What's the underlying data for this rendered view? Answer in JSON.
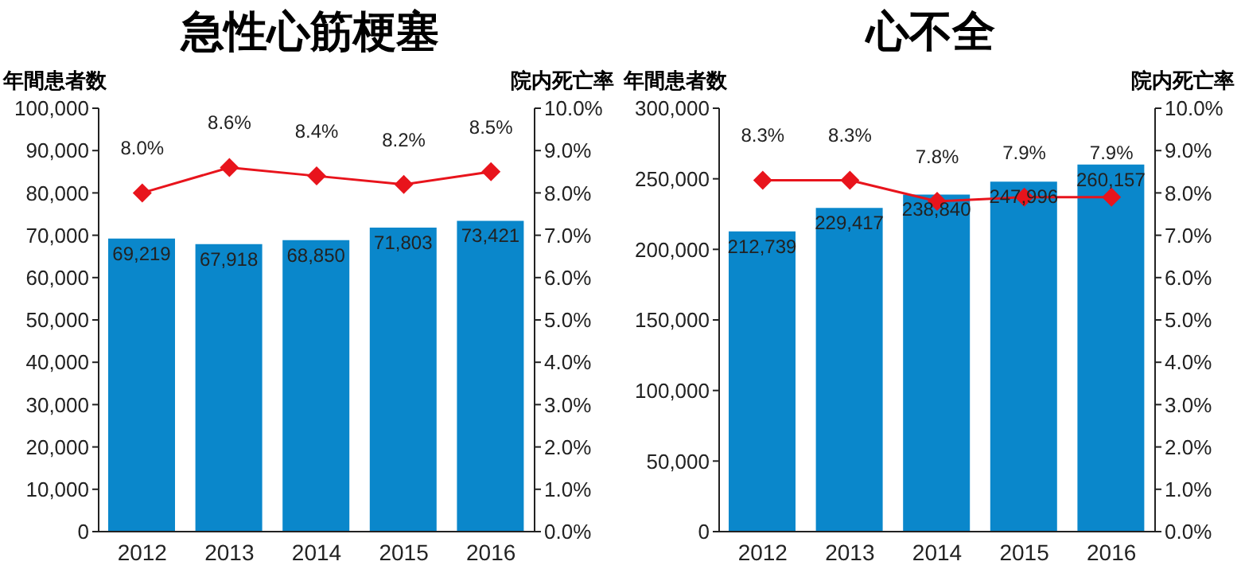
{
  "chart_data": [
    {
      "type": "bar",
      "title": "急性心筋梗塞",
      "ylabel": "年間患者数",
      "y2label": "院内死亡率",
      "categories": [
        "2012",
        "2013",
        "2014",
        "2015",
        "2016"
      ],
      "series": [
        {
          "color": "#0a87cb",
          "values": [
            69219,
            67918,
            68850,
            71803,
            73421
          ],
          "value_labels": [
            "69,219",
            "67,918",
            "68,850",
            "71,803",
            "73,421"
          ]
        },
        {
          "type": "line",
          "axis": "y2",
          "color": "#e8141c",
          "marker": "diamond",
          "values": [
            8.0,
            8.6,
            8.4,
            8.2,
            8.5
          ],
          "value_labels": [
            "8.0%",
            "8.6%",
            "8.4%",
            "8.2%",
            "8.5%"
          ]
        }
      ],
      "ylim": [
        0,
        100000
      ],
      "yticks": [
        {
          "value": 0,
          "label": "0"
        },
        {
          "value": 10000,
          "label": "10,000"
        },
        {
          "value": 20000,
          "label": "20,000"
        },
        {
          "value": 30000,
          "label": "30,000"
        },
        {
          "value": 40000,
          "label": "40,000"
        },
        {
          "value": 50000,
          "label": "50,000"
        },
        {
          "value": 60000,
          "label": "60,000"
        },
        {
          "value": 70000,
          "label": "70,000"
        },
        {
          "value": 80000,
          "label": "80,000"
        },
        {
          "value": 90000,
          "label": "90,000"
        },
        {
          "value": 100000,
          "label": "100,000"
        }
      ],
      "y2lim": [
        0,
        10
      ],
      "y2ticks": [
        {
          "value": 0,
          "label": "0.0%"
        },
        {
          "value": 1,
          "label": "1.0%"
        },
        {
          "value": 2,
          "label": "2.0%"
        },
        {
          "value": 3,
          "label": "3.0%"
        },
        {
          "value": 4,
          "label": "4.0%"
        },
        {
          "value": 5,
          "label": "5.0%"
        },
        {
          "value": 6,
          "label": "6.0%"
        },
        {
          "value": 7,
          "label": "7.0%"
        },
        {
          "value": 8,
          "label": "8.0%"
        },
        {
          "value": 9,
          "label": "9.0%"
        },
        {
          "value": 10,
          "label": "10.0%"
        }
      ],
      "grid": false,
      "legend": false
    },
    {
      "type": "bar",
      "title": "心不全",
      "ylabel": "年間患者数",
      "y2label": "院内死亡率",
      "categories": [
        "2012",
        "2013",
        "2014",
        "2015",
        "2016"
      ],
      "series": [
        {
          "color": "#0a87cb",
          "values": [
            212739,
            229417,
            238840,
            247996,
            260157
          ],
          "value_labels": [
            "212,739",
            "229,417",
            "238,840",
            "247,996",
            "260,157"
          ]
        },
        {
          "type": "line",
          "axis": "y2",
          "color": "#e8141c",
          "marker": "diamond",
          "values": [
            8.3,
            8.3,
            7.8,
            7.9,
            7.9
          ],
          "value_labels": [
            "8.3%",
            "8.3%",
            "7.8%",
            "7.9%",
            "7.9%"
          ]
        }
      ],
      "ylim": [
        0,
        300000
      ],
      "yticks": [
        {
          "value": 0,
          "label": "0"
        },
        {
          "value": 50000,
          "label": "50,000"
        },
        {
          "value": 100000,
          "label": "100,000"
        },
        {
          "value": 150000,
          "label": "150,000"
        },
        {
          "value": 200000,
          "label": "200,000"
        },
        {
          "value": 250000,
          "label": "250,000"
        },
        {
          "value": 300000,
          "label": "300,000"
        }
      ],
      "y2lim": [
        0,
        10
      ],
      "y2ticks": [
        {
          "value": 0,
          "label": "0.0%"
        },
        {
          "value": 1,
          "label": "1.0%"
        },
        {
          "value": 2,
          "label": "2.0%"
        },
        {
          "value": 3,
          "label": "3.0%"
        },
        {
          "value": 4,
          "label": "4.0%"
        },
        {
          "value": 5,
          "label": "5.0%"
        },
        {
          "value": 6,
          "label": "6.0%"
        },
        {
          "value": 7,
          "label": "7.0%"
        },
        {
          "value": 8,
          "label": "8.0%"
        },
        {
          "value": 9,
          "label": "9.0%"
        },
        {
          "value": 10,
          "label": "10.0%"
        }
      ],
      "grid": false,
      "legend": false
    }
  ]
}
